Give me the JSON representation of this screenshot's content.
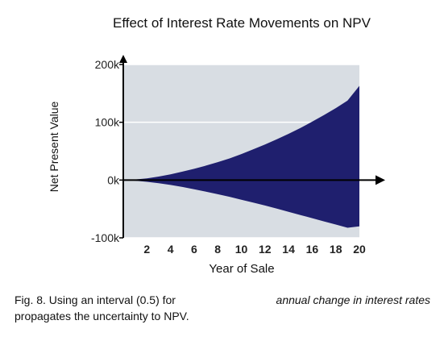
{
  "chart_data": {
    "type": "area",
    "title": "Effect of Interest Rate Movements on NPV",
    "xlabel": "Year of Sale",
    "ylabel": "Net Present Value",
    "xlim": [
      0,
      20
    ],
    "ylim": [
      -100000,
      200000
    ],
    "x_ticks": [
      2,
      4,
      6,
      8,
      10,
      12,
      14,
      16,
      18,
      20
    ],
    "x_tick_labels": [
      "2",
      "4",
      "6",
      "8",
      "10",
      "12",
      "14",
      "16",
      "18",
      "20"
    ],
    "y_ticks": [
      -100000,
      0,
      100000,
      200000
    ],
    "y_tick_labels": [
      "-100k",
      "0k",
      "100k",
      "200k"
    ],
    "grid": true,
    "x": [
      0,
      1,
      2,
      3,
      4,
      5,
      6,
      7,
      8,
      9,
      10,
      11,
      12,
      13,
      14,
      15,
      16,
      17,
      18,
      19,
      20
    ],
    "series": [
      {
        "values_upper": [
          0,
          1000,
          3000,
          6000,
          10000,
          14500,
          19500,
          25000,
          31000,
          37500,
          45000,
          53000,
          61500,
          70500,
          80000,
          90000,
          101000,
          112500,
          124500,
          137500,
          163000
        ],
        "values_lower": [
          0,
          -1000,
          -3000,
          -5500,
          -8500,
          -12000,
          -16000,
          -20000,
          -24500,
          -29000,
          -34000,
          -39000,
          -44000,
          -49500,
          -55000,
          -60500,
          -66000,
          -71500,
          -77000,
          -82500,
          -80000
        ],
        "color": "#1f1f6e"
      }
    ],
    "colors": {
      "plot_background": "#d8dde3",
      "band_fill": "#1f1f6e",
      "gridline": "#ffffff",
      "axis": "#000000"
    }
  },
  "caption": {
    "prefix": "Fig. 8. Using an interval (0.5) for",
    "emphasis": "annual change in interest rates",
    "suffix": "propagates the uncertainty to NPV."
  }
}
